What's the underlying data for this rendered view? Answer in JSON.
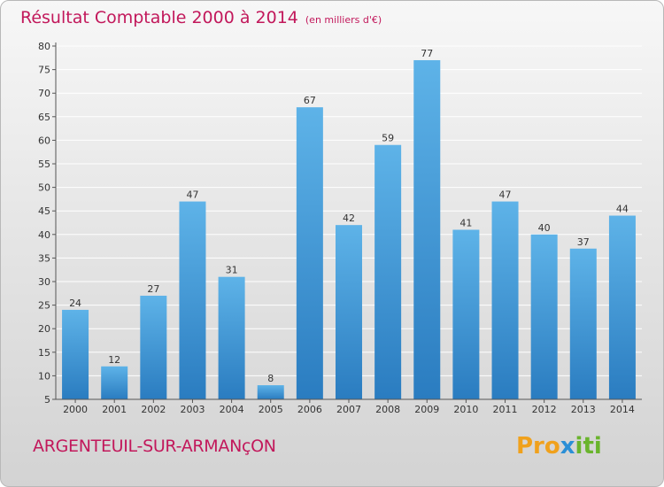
{
  "title": "Résultat Comptable 2000 à 2014",
  "unit": "(en milliers d'€)",
  "commune": "ARGENTEUIL-SUR-ARMANçON",
  "logo": {
    "part1": "Pro",
    "part2": "x",
    "part3": "iti"
  },
  "colors": {
    "bar_top": "#5eb3e8",
    "bar_bottom": "#2a7cc0",
    "title": "#c2185b",
    "grid": "#ffffff"
  },
  "chart_data": {
    "type": "bar",
    "title": "Résultat Comptable 2000 à 2014",
    "ylabel": "en milliers d'€",
    "xlabel": "",
    "categories": [
      "2000",
      "2001",
      "2002",
      "2003",
      "2004",
      "2005",
      "2006",
      "2007",
      "2008",
      "2009",
      "2010",
      "2011",
      "2012",
      "2013",
      "2014"
    ],
    "values": [
      24,
      12,
      27,
      47,
      31,
      8,
      67,
      42,
      59,
      77,
      41,
      47,
      40,
      37,
      44
    ],
    "ylim": [
      5,
      80
    ],
    "yticks": [
      5,
      10,
      15,
      20,
      25,
      30,
      35,
      40,
      45,
      50,
      55,
      60,
      65,
      70,
      75,
      80
    ],
    "grid": true
  }
}
